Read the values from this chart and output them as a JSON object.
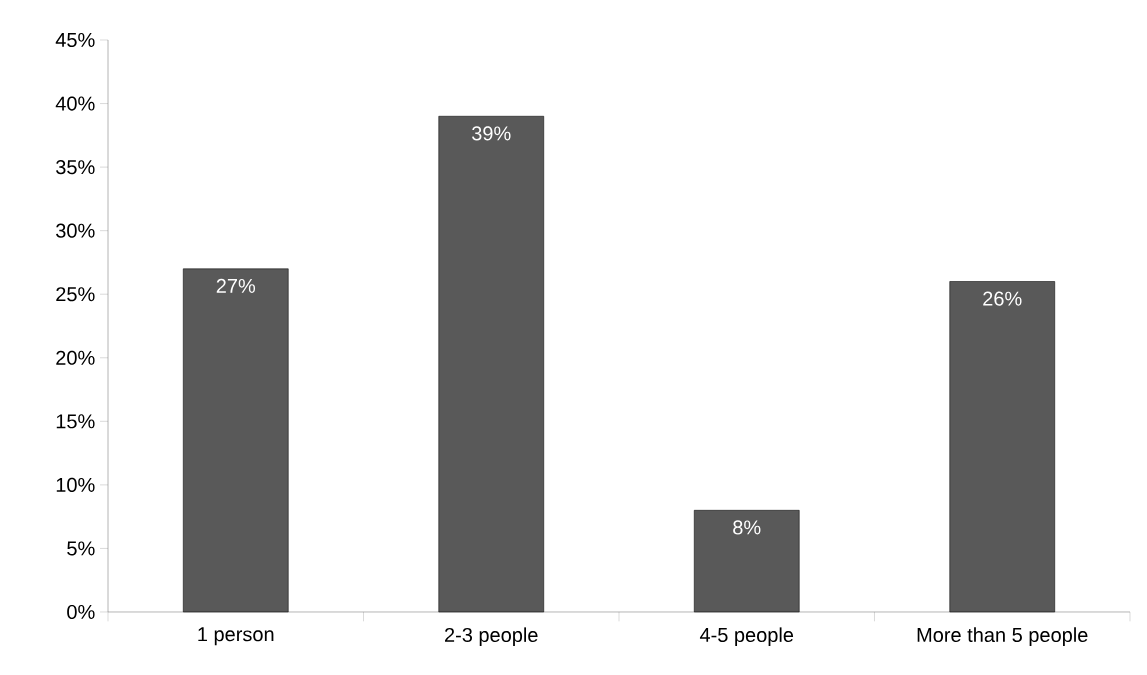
{
  "chart_data": {
    "type": "bar",
    "categories": [
      "1 person",
      "2-3 people",
      "4-5 people",
      "More than 5 people"
    ],
    "values": [
      27,
      39,
      8,
      26
    ],
    "color": "#595959",
    "value_labels": [
      "27%",
      "39%",
      "8%",
      "26%"
    ],
    "ylim": [
      0,
      45
    ],
    "yticks": [
      {
        "value": 0,
        "label": "0%"
      },
      {
        "value": 5,
        "label": "5%"
      },
      {
        "value": 10,
        "label": "10%"
      },
      {
        "value": 15,
        "label": "15%"
      },
      {
        "value": 20,
        "label": "20%"
      },
      {
        "value": 25,
        "label": "25%"
      },
      {
        "value": 30,
        "label": "30%"
      },
      {
        "value": 35,
        "label": "35%"
      },
      {
        "value": 40,
        "label": "40%"
      },
      {
        "value": 45,
        "label": "45%"
      }
    ],
    "grid": false
  }
}
